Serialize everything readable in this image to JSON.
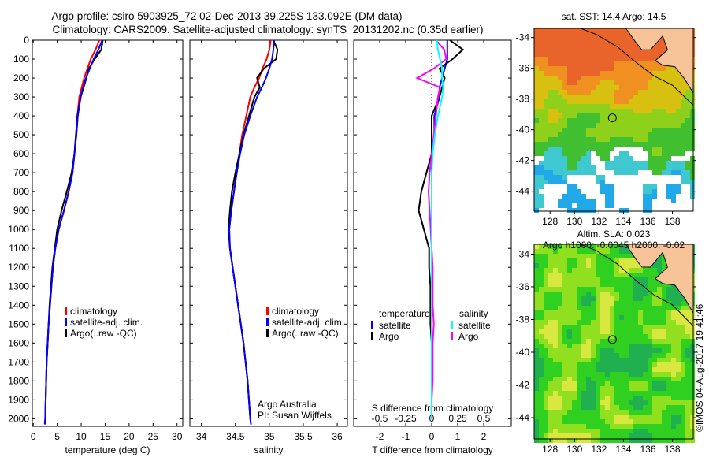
{
  "title_line1": "Argo profile: csiro 5903925_72 02-Dec-2013 39.225S 133.092E (DM data)",
  "title_line2": "Climatology: CARS2009. Satellite-adjusted climatology: synTS_20131202.nc (0.35d earlier)",
  "colors": {
    "climatology": "#ff0000",
    "satellite": "#0000ff",
    "argo": "#000000",
    "sal_satellite": "#00ffff",
    "sal_argo": "#ff00ff",
    "land": "#f7c49a"
  },
  "chart_data": [
    {
      "type": "line",
      "name": "temperature",
      "xlabel": "temperature (deg C)",
      "xlim": [
        -0.2,
        31.2
      ],
      "ylim": [
        2040,
        0
      ],
      "xticks": [
        "0",
        "5",
        "10",
        "15",
        "20",
        "25",
        "30"
      ],
      "xtick_values": [
        0,
        5,
        10,
        15,
        20,
        25,
        30
      ],
      "yticks": [
        "0",
        "100",
        "200",
        "300",
        "400",
        "500",
        "600",
        "700",
        "800",
        "900",
        "1000",
        "1100",
        "1200",
        "1300",
        "1400",
        "1500",
        "1600",
        "1700",
        "1800",
        "1900",
        "2000"
      ],
      "depth": [
        0,
        50,
        100,
        150,
        200,
        250,
        300,
        400,
        500,
        600,
        700,
        800,
        900,
        1000,
        1100,
        1200,
        1300,
        1400,
        1500,
        1600,
        1700,
        1800,
        1900,
        2000,
        2030
      ],
      "series": [
        {
          "name": "climatology",
          "color": "#ff0000",
          "values": [
            13.8,
            13.0,
            12.0,
            11.3,
            10.6,
            10.1,
            9.6,
            9.2,
            8.9,
            8.6,
            8.2,
            7.4,
            6.4,
            5.3,
            4.6,
            4.1,
            3.8,
            3.5,
            3.2,
            3.0,
            2.8,
            2.7,
            2.6,
            2.5,
            2.4
          ]
        },
        {
          "name": "Argo(..raw -QC)",
          "color": "#000000",
          "values": [
            14.5,
            14.2,
            12.8,
            11.6,
            11.1,
            10.5,
            9.9,
            9.2,
            8.9,
            8.6,
            8.0,
            7.0,
            5.9,
            5.0,
            4.5,
            4.0,
            3.7,
            3.4,
            3.2,
            3.0,
            2.8,
            2.7,
            2.6,
            2.5,
            null
          ]
        },
        {
          "name": "satellite-adj. clim.",
          "color": "#0000ff",
          "values": [
            14.4,
            13.6,
            12.6,
            11.8,
            11.0,
            10.4,
            9.9,
            9.3,
            9.0,
            8.6,
            8.2,
            7.4,
            6.4,
            5.3,
            4.6,
            4.1,
            3.8,
            3.5,
            3.2,
            3.0,
            2.8,
            2.7,
            2.6,
            2.5,
            2.4
          ]
        }
      ],
      "legend": [
        "climatology",
        "satellite-adj. clim.",
        "Argo(..raw -QC)"
      ],
      "legend_placement": "lower-center"
    },
    {
      "type": "line",
      "name": "salinity",
      "xlabel": "salinity",
      "xlim": [
        33.83,
        36.15
      ],
      "ylim": [
        2040,
        0
      ],
      "xticks": [
        "34",
        "34.5",
        "35",
        "35.5",
        "36"
      ],
      "xtick_values": [
        34,
        34.5,
        35,
        35.5,
        36
      ],
      "depth": [
        0,
        50,
        100,
        150,
        200,
        250,
        300,
        400,
        500,
        600,
        700,
        800,
        900,
        1000,
        1100,
        1200,
        1300,
        1400,
        1500,
        1600,
        1700,
        1800,
        1900,
        2000,
        2030
      ],
      "series": [
        {
          "name": "climatology",
          "color": "#ff0000",
          "values": [
            35.02,
            35.0,
            34.96,
            34.9,
            34.85,
            34.78,
            34.72,
            34.66,
            34.6,
            34.56,
            34.52,
            34.48,
            34.44,
            34.41,
            34.42,
            34.46,
            34.5,
            34.54,
            34.58,
            34.62,
            34.65,
            34.68,
            34.7,
            34.72,
            34.73
          ]
        },
        {
          "name": "Argo(..raw -QC)",
          "color": "#000000",
          "values": [
            35.06,
            35.12,
            35.1,
            34.92,
            34.82,
            34.86,
            34.78,
            34.7,
            34.62,
            34.56,
            34.5,
            34.45,
            34.42,
            34.4,
            34.42,
            34.46,
            34.5,
            34.54,
            34.58,
            34.62,
            34.65,
            34.68,
            34.7,
            34.72,
            null
          ]
        },
        {
          "name": "satellite-adj. clim.",
          "color": "#0000ff",
          "values": [
            35.07,
            35.06,
            35.04,
            35.0,
            34.95,
            34.89,
            34.82,
            34.72,
            34.63,
            34.57,
            34.52,
            34.48,
            34.44,
            34.41,
            34.42,
            34.46,
            34.5,
            34.54,
            34.58,
            34.62,
            34.65,
            34.68,
            34.7,
            34.72,
            34.73
          ]
        }
      ],
      "legend": [
        "climatology",
        "satellite-adj. clim.",
        "Argo(..raw -QC)"
      ],
      "annotation": [
        "Argo Australia",
        "PI: Susan Wijffels"
      ]
    },
    {
      "type": "line",
      "name": "differences",
      "xlabel": "T difference from climatology",
      "xlabel_top": "S difference from climatology",
      "xlim": [
        -3,
        3.06
      ],
      "ylim": [
        2040,
        0
      ],
      "xticks": [
        "-2",
        "-1",
        "0",
        "1",
        "2"
      ],
      "xtick_values": [
        -2,
        -1,
        0,
        1,
        2
      ],
      "s_xticks": [
        "-0.5",
        "-0.25",
        "0",
        "0.25",
        "0.5"
      ],
      "s_xtick_values": [
        -0.5,
        -0.25,
        0,
        0.25,
        0.5
      ],
      "depth": [
        0,
        50,
        100,
        150,
        200,
        250,
        300,
        400,
        500,
        600,
        700,
        800,
        900,
        1000,
        1100,
        1200,
        1300,
        1400,
        1500,
        1600,
        1700,
        1800,
        1900,
        2000
      ],
      "series": [
        {
          "name": "T satellite",
          "axis": "T",
          "color": "#0000ff",
          "values": [
            0.6,
            0.6,
            0.6,
            0.5,
            0.4,
            0.3,
            0.3,
            0.1,
            0.1,
            0,
            0,
            0,
            0,
            0,
            0,
            0,
            0,
            0,
            0,
            0,
            0,
            0,
            0,
            0
          ]
        },
        {
          "name": "T Argo",
          "axis": "T",
          "color": "#000000",
          "values": [
            0.7,
            1.2,
            0.8,
            0.3,
            0.5,
            0.4,
            0.3,
            0,
            0,
            0,
            -0.2,
            -0.4,
            -0.5,
            -0.3,
            -0.1,
            -0.1,
            -0.05,
            -0.05,
            -0.05,
            0,
            0,
            0,
            0,
            0
          ]
        },
        {
          "name": "S Argo",
          "axis": "S",
          "color": "#ff00ff",
          "values": [
            0.04,
            0.12,
            0.14,
            0.02,
            -0.14,
            0.08,
            0.06,
            0.04,
            0.02,
            0,
            -0.02,
            -0.03,
            -0.02,
            -0.01,
            0,
            0.01,
            0.01,
            0.01,
            0.02,
            0.01,
            0.01,
            0.01,
            0,
            0
          ]
        },
        {
          "name": "S satellite",
          "axis": "S",
          "color": "#00ffff",
          "values": [
            0.05,
            0.06,
            0.08,
            0.1,
            0.1,
            0.11,
            0.1,
            0.06,
            0.03,
            0.01,
            0,
            0,
            0,
            0,
            0,
            0,
            0,
            0,
            0,
            0,
            0,
            0,
            0,
            0
          ]
        }
      ],
      "legend": {
        "temperature_title": "temperature",
        "salinity_title": "salinity",
        "satellite": "satellite",
        "argo": "Argo"
      }
    }
  ],
  "maps": [
    {
      "title": "sat. SST: 14.4 Argo: 14.5",
      "kind": "sst"
    },
    {
      "title_line1": "Altim. SLA: 0.023",
      "title_line2": "Argo h1000: -0.0045 h2000: -0.02",
      "kind": "sla"
    }
  ],
  "map_axes": {
    "lon_ticks": [
      "128",
      "130",
      "132",
      "134",
      "136",
      "138"
    ],
    "lon_values": [
      128,
      130,
      132,
      134,
      136,
      138
    ],
    "lat_ticks": [
      "-34",
      "-36",
      "-38",
      "-40",
      "-42",
      "-44"
    ],
    "lat_values": [
      -34,
      -36,
      -38,
      -40,
      -42,
      -44
    ],
    "lon_range": [
      126.7,
      139.7
    ],
    "lat_range": [
      -33.4,
      -45.3
    ],
    "float_position": {
      "lon": 133.092,
      "lat": -39.225
    }
  },
  "timestamp": "©IMOS 04-Aug-2017 19:41:46"
}
